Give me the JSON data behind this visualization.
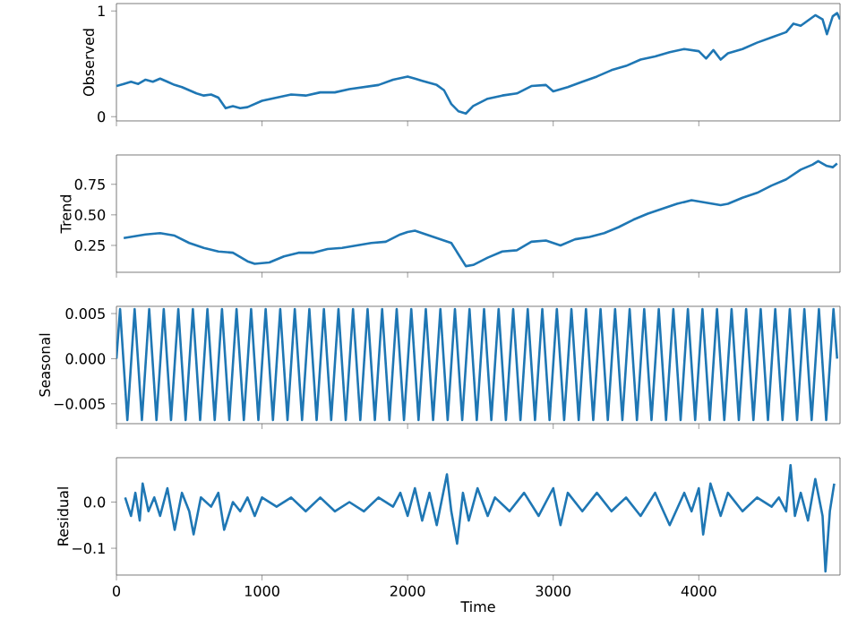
{
  "chart_data": [
    {
      "type": "line",
      "ylabel": "Observed",
      "color": "#1f77b4",
      "xlim": [
        0,
        4970
      ],
      "ylim": [
        -0.04,
        1.07
      ],
      "xticks": [
        0,
        1000,
        2000,
        3000,
        4000
      ],
      "yticks": [
        0,
        1
      ],
      "tick_labels": "y",
      "x": [
        0,
        50,
        100,
        150,
        200,
        250,
        300,
        350,
        400,
        450,
        500,
        550,
        600,
        650,
        700,
        750,
        800,
        850,
        900,
        1000,
        1100,
        1200,
        1300,
        1400,
        1500,
        1600,
        1700,
        1800,
        1900,
        2000,
        2050,
        2100,
        2150,
        2200,
        2250,
        2300,
        2350,
        2400,
        2450,
        2550,
        2650,
        2750,
        2850,
        2950,
        3000,
        3100,
        3200,
        3300,
        3400,
        3500,
        3600,
        3700,
        3800,
        3900,
        4000,
        4050,
        4100,
        4150,
        4200,
        4300,
        4400,
        4500,
        4600,
        4650,
        4700,
        4800,
        4850,
        4880,
        4920,
        4950,
        4970
      ],
      "values": [
        0.29,
        0.31,
        0.33,
        0.31,
        0.35,
        0.33,
        0.36,
        0.33,
        0.3,
        0.28,
        0.25,
        0.22,
        0.2,
        0.21,
        0.18,
        0.08,
        0.1,
        0.08,
        0.09,
        0.15,
        0.18,
        0.21,
        0.2,
        0.23,
        0.23,
        0.26,
        0.28,
        0.3,
        0.35,
        0.38,
        0.36,
        0.34,
        0.32,
        0.3,
        0.25,
        0.12,
        0.05,
        0.03,
        0.1,
        0.17,
        0.2,
        0.22,
        0.29,
        0.3,
        0.24,
        0.28,
        0.33,
        0.38,
        0.44,
        0.48,
        0.54,
        0.57,
        0.61,
        0.64,
        0.62,
        0.55,
        0.63,
        0.54,
        0.6,
        0.64,
        0.7,
        0.75,
        0.8,
        0.88,
        0.86,
        0.96,
        0.92,
        0.78,
        0.95,
        0.98,
        0.92
      ]
    },
    {
      "type": "line",
      "ylabel": "Trend",
      "color": "#1f77b4",
      "xlim": [
        0,
        4970
      ],
      "ylim": [
        0.03,
        0.99
      ],
      "xticks": [
        0,
        1000,
        2000,
        3000,
        4000
      ],
      "yticks": [
        {
          "value": 0.25,
          "label": "0.25"
        },
        {
          "value": 0.5,
          "label": "0.50"
        },
        {
          "value": 0.75,
          "label": "0.75"
        }
      ],
      "tick_labels": "y",
      "x": [
        50,
        200,
        300,
        400,
        500,
        600,
        700,
        800,
        900,
        950,
        1050,
        1150,
        1250,
        1350,
        1450,
        1550,
        1650,
        1750,
        1850,
        1950,
        2000,
        2050,
        2100,
        2200,
        2300,
        2400,
        2450,
        2550,
        2650,
        2750,
        2850,
        2950,
        3050,
        3150,
        3250,
        3350,
        3450,
        3550,
        3650,
        3750,
        3850,
        3950,
        4050,
        4150,
        4200,
        4300,
        4400,
        4500,
        4600,
        4700,
        4780,
        4820,
        4880,
        4920,
        4950
      ],
      "values": [
        0.31,
        0.34,
        0.35,
        0.33,
        0.27,
        0.23,
        0.2,
        0.19,
        0.12,
        0.1,
        0.11,
        0.16,
        0.19,
        0.19,
        0.22,
        0.23,
        0.25,
        0.27,
        0.28,
        0.34,
        0.36,
        0.37,
        0.35,
        0.31,
        0.27,
        0.08,
        0.09,
        0.15,
        0.2,
        0.21,
        0.28,
        0.29,
        0.25,
        0.3,
        0.32,
        0.35,
        0.4,
        0.46,
        0.51,
        0.55,
        0.59,
        0.62,
        0.6,
        0.58,
        0.59,
        0.64,
        0.68,
        0.74,
        0.79,
        0.87,
        0.91,
        0.94,
        0.9,
        0.89,
        0.92
      ]
    },
    {
      "type": "line",
      "ylabel": "Seasonal",
      "color": "#1f77b4",
      "xlim": [
        0,
        4970
      ],
      "ylim": [
        -0.0072,
        0.0058
      ],
      "xticks": [
        0,
        1000,
        2000,
        3000,
        4000
      ],
      "yticks": [
        {
          "value": 0.005,
          "label": "0.005"
        },
        {
          "value": 0,
          "label": "0.000"
        },
        {
          "value": -0.005,
          "label": "−0.005"
        }
      ],
      "tick_labels": "y",
      "x": [
        0,
        25,
        75,
        125,
        175,
        225,
        275,
        325,
        375,
        425,
        475,
        525,
        575,
        625,
        675,
        725,
        775,
        825,
        875,
        925,
        975,
        1025,
        1075,
        1125,
        1175,
        1225,
        1275,
        1325,
        1375,
        1425,
        1475,
        1525,
        1575,
        1625,
        1675,
        1725,
        1775,
        1825,
        1875,
        1925,
        1975,
        2025,
        2075,
        2125,
        2175,
        2225,
        2275,
        2325,
        2375,
        2425,
        2475,
        2525,
        2575,
        2625,
        2675,
        2725,
        2775,
        2825,
        2875,
        2925,
        2975,
        3025,
        3075,
        3125,
        3175,
        3225,
        3275,
        3325,
        3375,
        3425,
        3475,
        3525,
        3575,
        3625,
        3675,
        3725,
        3775,
        3825,
        3875,
        3925,
        3975,
        4025,
        4075,
        4125,
        4175,
        4225,
        4275,
        4325,
        4375,
        4425,
        4475,
        4525,
        4575,
        4625,
        4675,
        4725,
        4775,
        4825,
        4875,
        4925,
        4950
      ],
      "values": [
        0,
        0.0055,
        -0.0068,
        0.0055,
        -0.0068,
        0.0055,
        -0.0068,
        0.0055,
        -0.0068,
        0.0055,
        -0.0068,
        0.0055,
        -0.0068,
        0.0055,
        -0.0068,
        0.0055,
        -0.0068,
        0.0055,
        -0.0068,
        0.0055,
        -0.0068,
        0.0055,
        -0.0068,
        0.0055,
        -0.0068,
        0.0055,
        -0.0068,
        0.0055,
        -0.0068,
        0.0055,
        -0.0068,
        0.0055,
        -0.0068,
        0.0055,
        -0.0068,
        0.0055,
        -0.0068,
        0.0055,
        -0.0068,
        0.0055,
        -0.0068,
        0.0055,
        -0.0068,
        0.0055,
        -0.0068,
        0.0055,
        -0.0068,
        0.0055,
        -0.0068,
        0.0055,
        -0.0068,
        0.0055,
        -0.0068,
        0.0055,
        -0.0068,
        0.0055,
        -0.0068,
        0.0055,
        -0.0068,
        0.0055,
        -0.0068,
        0.0055,
        -0.0068,
        0.0055,
        -0.0068,
        0.0055,
        -0.0068,
        0.0055,
        -0.0068,
        0.0055,
        -0.0068,
        0.0055,
        -0.0068,
        0.0055,
        -0.0068,
        0.0055,
        -0.0068,
        0.0055,
        -0.0068,
        0.0055,
        -0.0068,
        0.0055,
        -0.0068,
        0.0055,
        -0.0068,
        0.0055,
        -0.0068,
        0.0055,
        -0.0068,
        0.0055,
        -0.0068,
        0.0055,
        -0.0068,
        0.0055,
        -0.0068,
        0.0055,
        -0.0068,
        0.0055,
        -0.0068,
        0.0055,
        0
      ]
    },
    {
      "type": "line",
      "ylabel": "Residual",
      "xlabel": "Time",
      "color": "#1f77b4",
      "xlim": [
        0,
        4970
      ],
      "ylim": [
        -0.158,
        0.096
      ],
      "xticks": [
        0,
        1000,
        2000,
        3000,
        4000
      ],
      "yticks": [
        {
          "value": 0,
          "label": "0.0"
        },
        {
          "value": -0.1,
          "label": "−0.1"
        }
      ],
      "x": [
        60,
        100,
        130,
        160,
        180,
        220,
        260,
        300,
        350,
        400,
        450,
        500,
        530,
        580,
        650,
        700,
        740,
        800,
        850,
        900,
        950,
        1000,
        1100,
        1200,
        1300,
        1400,
        1500,
        1600,
        1700,
        1800,
        1900,
        1950,
        2000,
        2050,
        2100,
        2150,
        2200,
        2270,
        2300,
        2340,
        2380,
        2420,
        2480,
        2550,
        2600,
        2700,
        2800,
        2900,
        3000,
        3050,
        3100,
        3200,
        3300,
        3400,
        3500,
        3600,
        3700,
        3800,
        3900,
        3950,
        4000,
        4030,
        4080,
        4150,
        4200,
        4300,
        4400,
        4500,
        4550,
        4600,
        4630,
        4660,
        4700,
        4750,
        4800,
        4850,
        4870,
        4900,
        4930
      ],
      "values": [
        0.01,
        -0.03,
        0.02,
        -0.04,
        0.04,
        -0.02,
        0.01,
        -0.03,
        0.03,
        -0.06,
        0.02,
        -0.02,
        -0.07,
        0.01,
        -0.01,
        0.02,
        -0.06,
        0.0,
        -0.02,
        0.01,
        -0.03,
        0.01,
        -0.01,
        0.01,
        -0.02,
        0.01,
        -0.02,
        0.0,
        -0.02,
        0.01,
        -0.01,
        0.02,
        -0.03,
        0.03,
        -0.04,
        0.02,
        -0.05,
        0.06,
        -0.02,
        -0.09,
        0.02,
        -0.04,
        0.03,
        -0.03,
        0.01,
        -0.02,
        0.02,
        -0.03,
        0.03,
        -0.05,
        0.02,
        -0.02,
        0.02,
        -0.02,
        0.01,
        -0.03,
        0.02,
        -0.05,
        0.02,
        -0.02,
        0.03,
        -0.07,
        0.04,
        -0.03,
        0.02,
        -0.02,
        0.01,
        -0.01,
        0.01,
        -0.02,
        0.08,
        -0.03,
        0.02,
        -0.04,
        0.05,
        -0.03,
        -0.15,
        -0.02,
        0.04
      ]
    }
  ]
}
